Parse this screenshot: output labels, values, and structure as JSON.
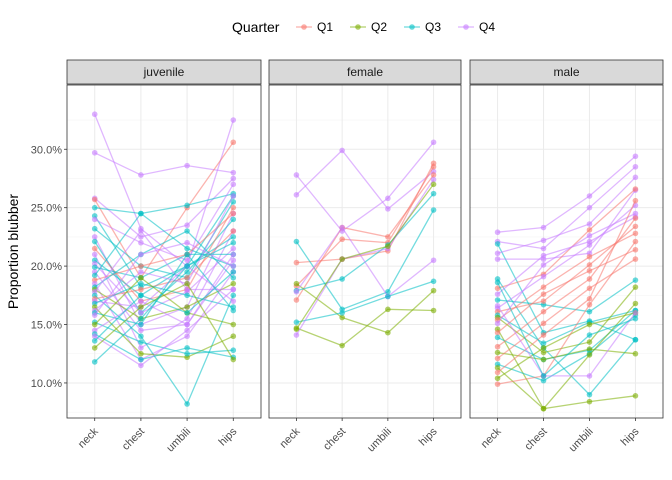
{
  "chart_data": {
    "type": "line",
    "ylabel": "Proportion blubber",
    "xlabel": "",
    "categories": [
      "neck",
      "chest",
      "umbili",
      "hips"
    ],
    "y_ticks": [
      "10.0%",
      "15.0%",
      "20.0%",
      "25.0%",
      "30.0%"
    ],
    "y_tick_values": [
      0.1,
      0.15,
      0.2,
      0.25,
      0.3
    ],
    "ylim": [
      0.07,
      0.355
    ],
    "grid": true,
    "legend": {
      "title": "Quarter",
      "position": "top",
      "entries": [
        {
          "label": "Q1",
          "color": "#F8766D"
        },
        {
          "label": "Q2",
          "color": "#7CAE00"
        },
        {
          "label": "Q3",
          "color": "#00BFC4"
        },
        {
          "label": "Q4",
          "color": "#C77CFF"
        }
      ]
    },
    "panels": [
      {
        "title": "juvenile",
        "series": [
          {
            "quarter": "Q4",
            "values": [
              0.33,
              0.232,
              0.2,
              0.325
            ]
          },
          {
            "quarter": "Q4",
            "values": [
              0.297,
              0.278,
              0.286,
              0.28
            ]
          },
          {
            "quarter": "Q4",
            "values": [
              0.258,
              0.225,
              0.235,
              0.275
            ]
          },
          {
            "quarter": "Q1",
            "values": [
              0.257,
              0.19,
              0.25,
              0.306
            ]
          },
          {
            "quarter": "Q3",
            "values": [
              0.25,
              0.245,
              0.252,
              0.262
            ]
          },
          {
            "quarter": "Q3",
            "values": [
              0.243,
              0.182,
              0.2,
              0.26
            ]
          },
          {
            "quarter": "Q4",
            "values": [
              0.24,
              0.22,
              0.205,
              0.27
            ]
          },
          {
            "quarter": "Q3",
            "values": [
              0.232,
              0.2,
              0.19,
              0.255
            ]
          },
          {
            "quarter": "Q4",
            "values": [
              0.225,
              0.15,
              0.165,
              0.245
            ]
          },
          {
            "quarter": "Q3",
            "values": [
              0.221,
              0.16,
              0.195,
              0.24
            ]
          },
          {
            "quarter": "Q1",
            "values": [
              0.215,
              0.17,
              0.18,
              0.25
            ]
          },
          {
            "quarter": "Q4",
            "values": [
              0.21,
              0.13,
              0.155,
              0.23
            ]
          },
          {
            "quarter": "Q3",
            "values": [
              0.205,
              0.175,
              0.2,
              0.225
            ]
          },
          {
            "quarter": "Q4",
            "values": [
              0.202,
              0.16,
              0.178,
              0.215
            ]
          },
          {
            "quarter": "Q3",
            "values": [
              0.199,
              0.19,
              0.21,
              0.21
            ]
          },
          {
            "quarter": "Q4",
            "values": [
              0.195,
              0.145,
              0.15,
              0.205
            ]
          },
          {
            "quarter": "Q3",
            "values": [
              0.192,
              0.245,
              0.215,
              0.2
            ]
          },
          {
            "quarter": "Q1",
            "values": [
              0.188,
              0.2,
              0.21,
              0.245
            ]
          },
          {
            "quarter": "Q4",
            "values": [
              0.185,
              0.12,
              0.14,
              0.195
            ]
          },
          {
            "quarter": "Q3",
            "values": [
              0.182,
              0.21,
              0.23,
              0.19
            ]
          },
          {
            "quarter": "Q2",
            "values": [
              0.18,
              0.155,
              0.165,
              0.185
            ]
          },
          {
            "quarter": "Q4",
            "values": [
              0.178,
              0.23,
              0.18,
              0.18
            ]
          },
          {
            "quarter": "Q3",
            "values": [
              0.175,
              0.14,
              0.082,
              0.175
            ]
          },
          {
            "quarter": "Q1",
            "values": [
              0.172,
              0.18,
              0.19,
              0.23
            ]
          },
          {
            "quarter": "Q4",
            "values": [
              0.17,
              0.165,
              0.2,
              0.17
            ]
          },
          {
            "quarter": "Q3",
            "values": [
              0.168,
              0.185,
              0.175,
              0.165
            ]
          },
          {
            "quarter": "Q2",
            "values": [
              0.165,
              0.125,
              0.122,
              0.14
            ]
          },
          {
            "quarter": "Q4",
            "values": [
              0.162,
              0.195,
              0.185,
              0.26
            ]
          },
          {
            "quarter": "Q3",
            "values": [
              0.16,
              0.15,
              0.21,
              0.162
            ]
          },
          {
            "quarter": "Q4",
            "values": [
              0.158,
              0.21,
              0.22,
              0.2
            ]
          },
          {
            "quarter": "Q3",
            "values": [
              0.152,
              0.135,
              0.125,
              0.128
            ]
          },
          {
            "quarter": "Q2",
            "values": [
              0.15,
              0.19,
              0.16,
              0.15
            ]
          },
          {
            "quarter": "Q4",
            "values": [
              0.145,
              0.17,
              0.15,
              0.21
            ]
          },
          {
            "quarter": "Q3",
            "values": [
              0.142,
              0.12,
              0.13,
              0.122
            ]
          },
          {
            "quarter": "Q4",
            "values": [
              0.14,
              0.115,
              0.145,
              0.18
            ]
          },
          {
            "quarter": "Q3",
            "values": [
              0.136,
              0.175,
              0.16,
              0.195
            ]
          },
          {
            "quarter": "Q2",
            "values": [
              0.13,
              0.165,
              0.185,
              0.12
            ]
          },
          {
            "quarter": "Q3",
            "values": [
              0.118,
              0.155,
              0.2,
              0.22
            ]
          }
        ]
      },
      {
        "title": "female",
        "series": [
          {
            "quarter": "Q4",
            "values": [
              0.278,
              0.23,
              0.258,
              0.306
            ]
          },
          {
            "quarter": "Q4",
            "values": [
              0.261,
              0.299,
              0.249,
              0.281
            ]
          },
          {
            "quarter": "Q1",
            "values": [
              0.203,
              0.206,
              0.213,
              0.288
            ]
          },
          {
            "quarter": "Q3",
            "values": [
              0.221,
              0.163,
              0.178,
              0.248
            ]
          },
          {
            "quarter": "Q1",
            "values": [
              0.183,
              0.223,
              0.22,
              0.285
            ]
          },
          {
            "quarter": "Q2",
            "values": [
              0.185,
              0.156,
              0.143,
              0.179
            ]
          },
          {
            "quarter": "Q1",
            "values": [
              0.171,
              0.233,
              0.225,
              0.278
            ]
          },
          {
            "quarter": "Q3",
            "values": [
              0.179,
              0.189,
              0.218,
              0.262
            ]
          },
          {
            "quarter": "Q4",
            "values": [
              0.178,
              0.233,
              0.174,
              0.205
            ]
          },
          {
            "quarter": "Q2",
            "values": [
              0.147,
              0.132,
              0.163,
              0.162
            ]
          },
          {
            "quarter": "Q3",
            "values": [
              0.152,
              0.16,
              0.174,
              0.187
            ]
          },
          {
            "quarter": "Q4",
            "values": [
              0.141,
              0.206,
              0.215,
              0.274
            ]
          },
          {
            "quarter": "Q2",
            "values": [
              0.146,
              0.206,
              0.217,
              0.27
            ]
          }
        ]
      },
      {
        "title": "male",
        "series": [
          {
            "quarter": "Q4",
            "values": [
              0.229,
              0.233,
              0.26,
              0.294
            ]
          },
          {
            "quarter": "Q4",
            "values": [
              0.221,
              0.215,
              0.25,
              0.285
            ]
          },
          {
            "quarter": "Q3",
            "values": [
              0.219,
              0.143,
              0.153,
              0.137
            ]
          },
          {
            "quarter": "Q4",
            "values": [
              0.211,
              0.222,
              0.236,
              0.276
            ]
          },
          {
            "quarter": "Q4",
            "values": [
              0.206,
              0.206,
              0.211,
              0.265
            ]
          },
          {
            "quarter": "Q3",
            "values": [
              0.189,
              0.13,
              0.09,
              0.137
            ]
          },
          {
            "quarter": "Q1",
            "values": [
              0.181,
              0.193,
              0.231,
              0.266
            ]
          },
          {
            "quarter": "Q4",
            "values": [
              0.176,
              0.209,
              0.221,
              0.242
            ]
          },
          {
            "quarter": "Q3",
            "values": [
              0.171,
              0.167,
              0.161,
              0.188
            ]
          },
          {
            "quarter": "Q4",
            "values": [
              0.164,
              0.191,
              0.218,
              0.252
            ]
          },
          {
            "quarter": "Q1",
            "values": [
              0.161,
              0.17,
              0.201,
              0.234
            ]
          },
          {
            "quarter": "Q3",
            "values": [
              0.158,
              0.134,
              0.152,
              0.162
            ]
          },
          {
            "quarter": "Q2",
            "values": [
              0.156,
              0.126,
              0.135,
              0.182
            ]
          },
          {
            "quarter": "Q1",
            "values": [
              0.154,
              0.182,
              0.208,
              0.228
            ]
          },
          {
            "quarter": "Q4",
            "values": [
              0.151,
              0.201,
              0.226,
              0.245
            ]
          },
          {
            "quarter": "Q2",
            "values": [
              0.146,
              0.078,
              0.084,
              0.089
            ]
          },
          {
            "quarter": "Q1",
            "values": [
              0.143,
              0.176,
              0.196,
              0.214
            ]
          },
          {
            "quarter": "Q3",
            "values": [
              0.139,
              0.12,
              0.128,
              0.162
            ]
          },
          {
            "quarter": "Q1",
            "values": [
              0.131,
              0.161,
              0.189,
              0.241
            ]
          },
          {
            "quarter": "Q2",
            "values": [
              0.126,
              0.12,
              0.129,
              0.125
            ]
          },
          {
            "quarter": "Q1",
            "values": [
              0.121,
              0.151,
              0.181,
              0.206
            ]
          },
          {
            "quarter": "Q3",
            "values": [
              0.116,
              0.102,
              0.125,
              0.158
            ]
          },
          {
            "quarter": "Q2",
            "values": [
              0.113,
              0.078,
              0.124,
              0.168
            ]
          },
          {
            "quarter": "Q1",
            "values": [
              0.109,
              0.141,
              0.172,
              0.256
            ]
          },
          {
            "quarter": "Q2",
            "values": [
              0.104,
              0.13,
              0.15,
              0.16
            ]
          },
          {
            "quarter": "Q1",
            "values": [
              0.099,
              0.106,
              0.167,
              0.221
            ]
          },
          {
            "quarter": "Q4",
            "values": [
              0.166,
              0.106,
              0.106,
              0.16
            ]
          },
          {
            "quarter": "Q3",
            "values": [
              0.186,
              0.106,
              0.141,
              0.155
            ]
          }
        ]
      }
    ]
  }
}
